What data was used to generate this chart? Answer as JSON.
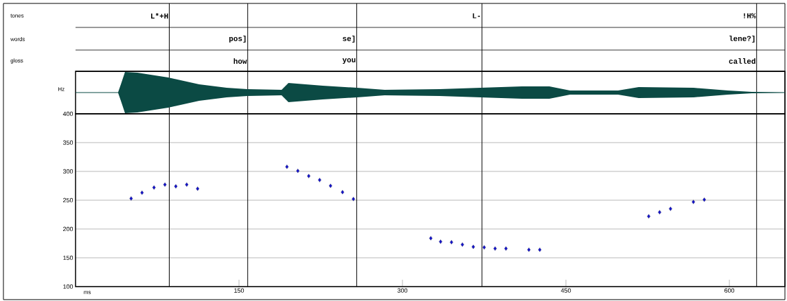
{
  "chart_data": {
    "type": "scatter",
    "color": "#1414c8",
    "marker": "diamond",
    "grid": "y",
    "xlabel": "ms",
    "ylabel": "Hz",
    "x": [
      51,
      61,
      72,
      82,
      92,
      102,
      112,
      194,
      204,
      214,
      224,
      234,
      245,
      255,
      326,
      335,
      345,
      355,
      365,
      375,
      385,
      395,
      416,
      426,
      526,
      536,
      546,
      567,
      577
    ],
    "values": [
      253,
      263,
      272,
      277,
      274,
      277,
      270,
      308,
      301,
      292,
      285,
      275,
      264,
      252,
      184,
      178,
      177,
      173,
      169,
      168,
      166,
      166,
      164,
      164,
      222,
      229,
      235,
      247,
      251
    ],
    "xlim": [
      0,
      651
    ],
    "ylim": [
      100,
      400
    ],
    "xticks": [
      150,
      300,
      450,
      600
    ],
    "yticks": [
      100,
      150,
      200,
      250,
      300,
      350,
      400
    ],
    "ref_lines": [
      {
        "axis": "x",
        "value": 86
      },
      {
        "axis": "x",
        "value": 158
      },
      {
        "axis": "x",
        "value": 258
      },
      {
        "axis": "x",
        "value": 373
      },
      {
        "axis": "x",
        "value": 625
      }
    ],
    "annotations": [
      "tones",
      {
        "text": "L*+H",
        "x": 86
      },
      {
        "text": "L-",
        "x": 373
      },
      {
        "text": "!H%",
        "x": 625
      },
      "words",
      {
        "text": "pos]",
        "x": 158
      },
      {
        "text": "se]",
        "x": 258
      },
      {
        "text": "lene?]",
        "x": 625
      },
      "gloss",
      {
        "text": "how",
        "x": 158
      },
      {
        "text": "you",
        "x": 258
      },
      {
        "text": "called",
        "x": 625
      }
    ]
  }
}
